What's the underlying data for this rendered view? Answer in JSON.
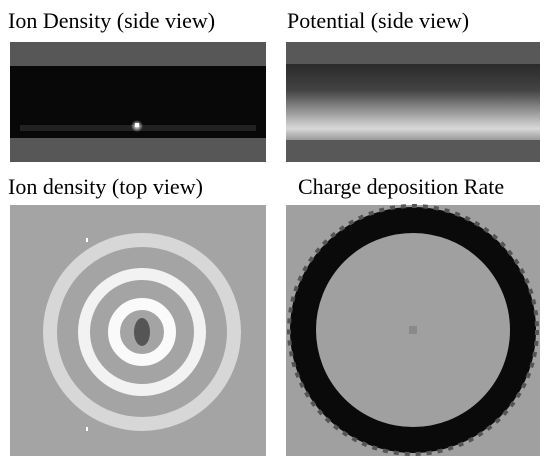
{
  "panels": [
    {
      "title": "Ion Density (side view)"
    },
    {
      "title": "Potential (side view)"
    },
    {
      "title": "Ion density (top view)"
    },
    {
      "title": "Charge deposition Rate"
    }
  ]
}
